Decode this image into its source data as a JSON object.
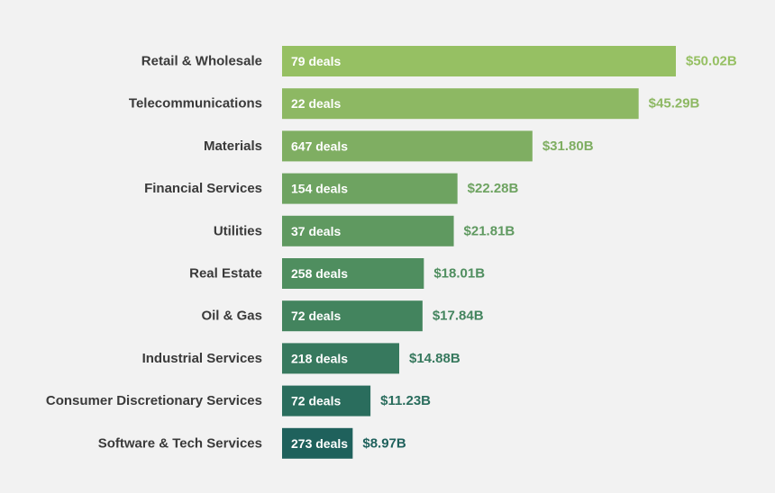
{
  "chart_data": {
    "type": "bar",
    "orientation": "horizontal",
    "categories": [
      "Retail & Wholesale",
      "Telecommunications",
      "Materials",
      "Financial Services",
      "Utilities",
      "Real Estate",
      "Oil & Gas",
      "Industrial Services",
      "Consumer Discretionary Services",
      "Software & Tech Services"
    ],
    "values": [
      50.02,
      45.29,
      31.8,
      22.28,
      21.81,
      18.01,
      17.84,
      14.88,
      11.23,
      8.97
    ],
    "value_labels": [
      "$50.02B",
      "$45.29B",
      "$31.80B",
      "$22.28B",
      "$21.81B",
      "$18.01B",
      "$17.84B",
      "$14.88B",
      "$11.23B",
      "$8.97B"
    ],
    "deal_labels": [
      "79 deals",
      "22 deals",
      "647 deals",
      "154 deals",
      "37 deals",
      "258 deals",
      "72 deals",
      "218 deals",
      "72 deals",
      "273 deals"
    ],
    "colors": [
      "#96c063",
      "#8db863",
      "#7fae62",
      "#6ea361",
      "#5f9960",
      "#4f8e5f",
      "#43845e",
      "#37795e",
      "#2a6d5d",
      "#1f615c"
    ],
    "xlim": [
      0,
      50.02
    ],
    "grid": false,
    "legend": "none"
  }
}
